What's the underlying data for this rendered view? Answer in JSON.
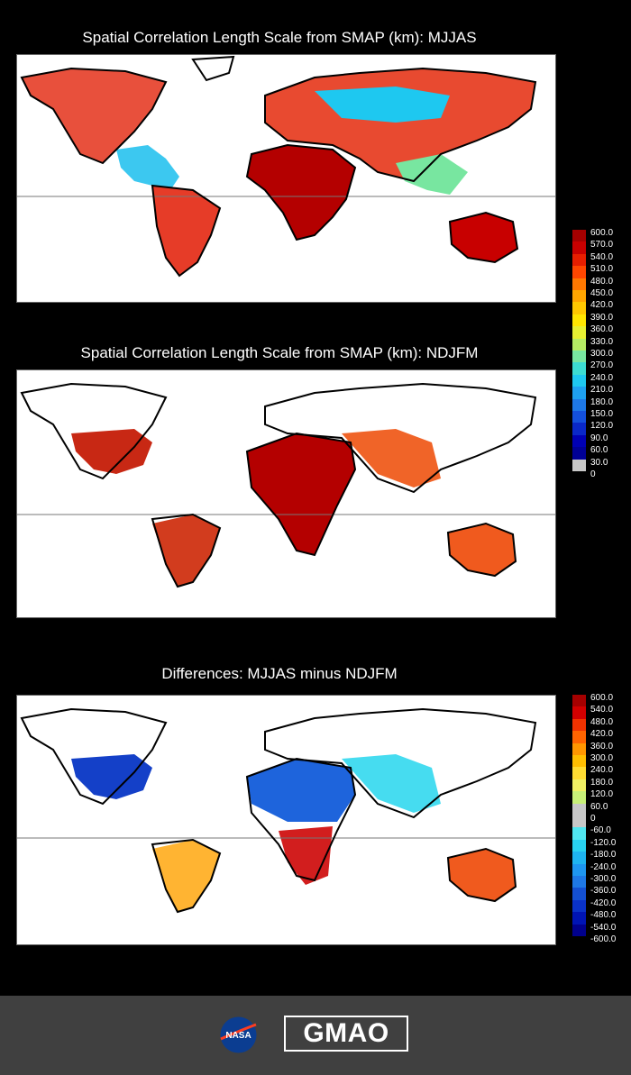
{
  "panels": [
    {
      "title": "Spatial Correlation Length Scale from SMAP (km): MJJAS",
      "season": "MJJAS"
    },
    {
      "title": "Spatial Correlation Length Scale from SMAP (km): NDJFM",
      "season": "NDJFM"
    },
    {
      "title": "Differences: MJJAS minus NDJFM",
      "season": "diff"
    }
  ],
  "colorbar_top": {
    "labels": [
      "600.0",
      "570.0",
      "540.0",
      "510.0",
      "480.0",
      "450.0",
      "420.0",
      "390.0",
      "360.0",
      "330.0",
      "300.0",
      "270.0",
      "240.0",
      "210.0",
      "180.0",
      "150.0",
      "120.0",
      "90.0",
      "60.0",
      "30.0",
      "0"
    ],
    "colors": [
      "#a50000",
      "#c80000",
      "#e61e00",
      "#ff4600",
      "#ff7800",
      "#ffa500",
      "#ffc800",
      "#ffe600",
      "#e6f032",
      "#b4eb64",
      "#78e6a0",
      "#3cdcd2",
      "#1ec8f0",
      "#1ea0f0",
      "#1e78e6",
      "#1450dc",
      "#0a28c8",
      "#0000b4",
      "#000096",
      "#c8c8c8"
    ]
  },
  "colorbar_bottom": {
    "labels": [
      "600.0",
      "540.0",
      "480.0",
      "420.0",
      "360.0",
      "300.0",
      "240.0",
      "180.0",
      "120.0",
      "60.0",
      "0",
      "-60.0",
      "-120.0",
      "-180.0",
      "-240.0",
      "-300.0",
      "-360.0",
      "-420.0",
      "-480.0",
      "-540.0",
      "-600.0"
    ],
    "colors": [
      "#a50000",
      "#d20000",
      "#f03200",
      "#ff6400",
      "#ff9600",
      "#ffbe00",
      "#ffdc32",
      "#f0f064",
      "#c8f078",
      "#c8c8c8",
      "#c8c8c8",
      "#50e6f0",
      "#28d2f0",
      "#1eb4f0",
      "#1e96f0",
      "#1e78e6",
      "#1450d2",
      "#0a32c8",
      "#0014b4",
      "#00008c"
    ]
  },
  "footer": {
    "logo_left": "NASA",
    "logo_right": "GMAO"
  }
}
